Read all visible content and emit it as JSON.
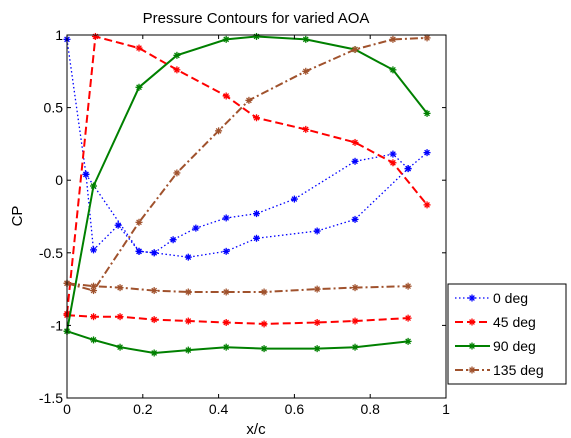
{
  "chart_data": {
    "type": "line",
    "title": "Pressure Contours for varied AOA",
    "xlabel": "x/c",
    "ylabel": "CP",
    "xlim": [
      0,
      1
    ],
    "ylim": [
      -1.5,
      1
    ],
    "xticks": [
      0,
      0.2,
      0.4,
      0.6,
      0.8,
      1
    ],
    "xtick_labels": [
      "0",
      "0.2",
      "0.4",
      "0.6",
      "0.8",
      "1"
    ],
    "yticks": [
      -1.5,
      -1,
      -0.5,
      0,
      0.5,
      1
    ],
    "ytick_labels": [
      "-1.5",
      "-1",
      "-0.5",
      "0",
      "0.5",
      "1"
    ],
    "grid": false,
    "legend_position": "outside-right-bottom",
    "series": [
      {
        "name": "0 deg",
        "color": "#0000ff",
        "line_style": "dotted",
        "marker": "star",
        "x": [
          0.0,
          0.05,
          0.07,
          0.135,
          0.19,
          0.23,
          0.28,
          0.34,
          0.42,
          0.5,
          0.6,
          0.76,
          0.86,
          0.9,
          0.95
        ],
        "y": [
          0.97,
          0.04,
          -0.48,
          -0.31,
          -0.49,
          -0.5,
          -0.41,
          -0.33,
          -0.26,
          -0.23,
          -0.13,
          0.13,
          0.18,
          0.08,
          0.19
        ],
        "x_lower": [
          0.05,
          0.19,
          0.23,
          0.32,
          0.42,
          0.5,
          0.66,
          0.76,
          0.9
        ],
        "y_lower": [
          0.04,
          -0.49,
          -0.5,
          -0.53,
          -0.49,
          -0.4,
          -0.35,
          -0.27,
          0.08
        ]
      },
      {
        "name": "45 deg",
        "color": "#ff0000",
        "line_style": "dashed",
        "marker": "star",
        "x": [
          0.0,
          0.075,
          0.19,
          0.29,
          0.42,
          0.5,
          0.63,
          0.76,
          0.86,
          0.95
        ],
        "y": [
          -0.92,
          0.99,
          0.91,
          0.76,
          0.58,
          0.43,
          0.35,
          0.26,
          0.12,
          -0.17
        ],
        "x_lower": [
          0.0,
          0.07,
          0.14,
          0.23,
          0.32,
          0.42,
          0.52,
          0.66,
          0.76,
          0.9
        ],
        "y_lower": [
          -0.93,
          -0.94,
          -0.94,
          -0.96,
          -0.97,
          -0.98,
          -0.99,
          -0.98,
          -0.97,
          -0.95
        ]
      },
      {
        "name": "90 deg",
        "color": "#008000",
        "line_style": "solid",
        "marker": "star",
        "x": [
          0.0,
          0.07,
          0.19,
          0.29,
          0.42,
          0.5,
          0.63,
          0.76,
          0.86,
          0.95
        ],
        "y": [
          -1.04,
          -0.04,
          0.64,
          0.86,
          0.97,
          0.99,
          0.97,
          0.9,
          0.76,
          0.46
        ],
        "x_lower": [
          0.0,
          0.07,
          0.14,
          0.23,
          0.32,
          0.42,
          0.52,
          0.66,
          0.76,
          0.9
        ],
        "y_lower": [
          -1.04,
          -1.1,
          -1.15,
          -1.19,
          -1.17,
          -1.15,
          -1.16,
          -1.16,
          -1.15,
          -1.11
        ]
      },
      {
        "name": "135 deg",
        "color": "#a0522d",
        "line_style": "dashdot",
        "marker": "star",
        "x": [
          0.0,
          0.07,
          0.19,
          0.29,
          0.4,
          0.48,
          0.63,
          0.76,
          0.86,
          0.95
        ],
        "y": [
          -0.71,
          -0.76,
          -0.29,
          0.05,
          0.34,
          0.55,
          0.75,
          0.9,
          0.97,
          0.98
        ],
        "x_lower": [
          0.0,
          0.07,
          0.14,
          0.23,
          0.32,
          0.42,
          0.52,
          0.66,
          0.76,
          0.9
        ],
        "y_lower": [
          -0.71,
          -0.73,
          -0.74,
          -0.76,
          -0.77,
          -0.77,
          -0.77,
          -0.75,
          -0.74,
          -0.73
        ]
      }
    ]
  }
}
